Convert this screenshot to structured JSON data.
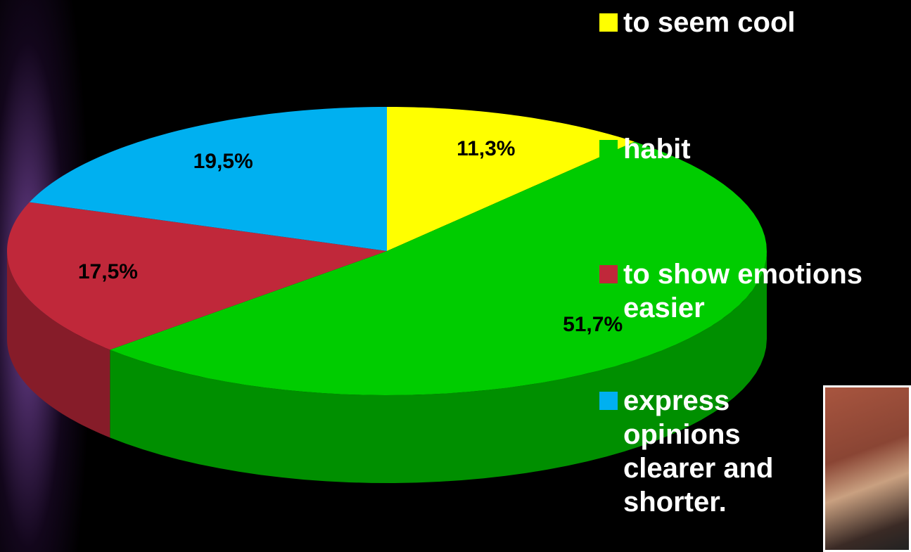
{
  "chart_data": {
    "type": "pie",
    "categories": [
      "to seem cool",
      "habit",
      "to show emotions easier",
      "express opinions clearer and shorter."
    ],
    "values": [
      11.3,
      51.7,
      17.5,
      19.5
    ],
    "value_labels": [
      "11,3%",
      "51,7%",
      "17,5%",
      "19,5%"
    ],
    "colors": [
      "#ffff00",
      "#00cc00",
      "#c0283a",
      "#00b0f0"
    ],
    "legend": "right"
  }
}
